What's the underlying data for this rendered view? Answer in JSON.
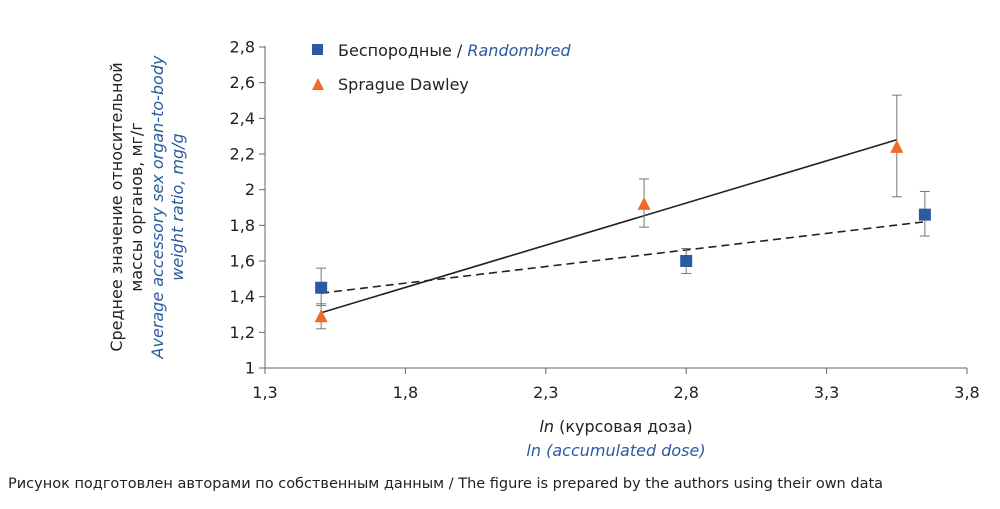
{
  "chart_data": {
    "type": "scatter",
    "xlim": [
      1.3,
      3.8
    ],
    "ylim": [
      1,
      2.8
    ],
    "xticks": [
      1.3,
      1.8,
      2.3,
      2.8,
      3.3,
      3.8
    ],
    "xtick_labels": [
      "1,3",
      "1,8",
      "2,3",
      "2,8",
      "3,3",
      "3,8"
    ],
    "yticks": [
      1,
      1.2,
      1.4,
      1.6,
      1.8,
      2,
      2.2,
      2.4,
      2.6,
      2.8
    ],
    "ytick_labels": [
      "1",
      "1,2",
      "1,4",
      "1,6",
      "1,8",
      "2",
      "2,2",
      "2,4",
      "2,6",
      "2,8"
    ],
    "ylabel_ru_1": "Среднее значение относительной",
    "ylabel_ru_2": "массы органов, мг/г",
    "ylabel_en_1": "Average accessory sex organ-to-body",
    "ylabel_en_2": "weight ratio, mg/g",
    "xlabel_ru_italic": "ln",
    "xlabel_ru_rest": " (курсовая доза)",
    "xlabel_en": "ln (accumulated dose)",
    "grid": false,
    "legend_position": "top-left",
    "series": [
      {
        "name_ru": "Беспородные / ",
        "name_en": "Randombred",
        "marker": "square",
        "color": "#2a5aa0",
        "x": [
          1.5,
          2.8,
          3.65
        ],
        "y": [
          1.45,
          1.6,
          1.86
        ],
        "err_low": [
          0.1,
          0.07,
          0.12
        ],
        "err_high": [
          0.11,
          0.07,
          0.13
        ],
        "trend": {
          "style": "dashed",
          "x": [
            1.5,
            3.65
          ],
          "y": [
            1.42,
            1.82
          ]
        }
      },
      {
        "name": "Sprague Dawley",
        "marker": "triangle",
        "color": "#f06a28",
        "x": [
          1.5,
          2.65,
          3.55
        ],
        "y": [
          1.29,
          1.92,
          2.24
        ],
        "err_low": [
          0.07,
          0.13,
          0.28
        ],
        "err_high": [
          0.07,
          0.14,
          0.29
        ],
        "trend": {
          "style": "solid",
          "x": [
            1.5,
            3.55
          ],
          "y": [
            1.31,
            2.28
          ]
        }
      }
    ]
  },
  "caption": "Рисунок подготовлен авторами по собственным данным / The figure is prepared by the authors using their own data"
}
